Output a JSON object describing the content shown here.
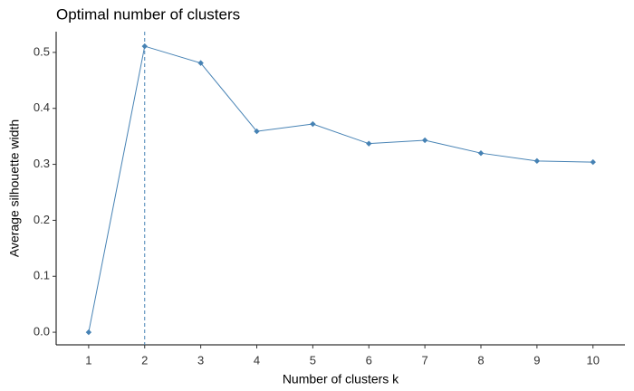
{
  "chart_data": {
    "type": "line",
    "title": "Optimal number of clusters",
    "xlabel": "Number of clusters k",
    "ylabel": "Average silhouette width",
    "x": [
      1,
      2,
      3,
      4,
      5,
      6,
      7,
      8,
      9,
      10
    ],
    "series": [
      {
        "color": "#4682b4",
        "values": [
          0,
          0.511,
          0.481,
          0.359,
          0.372,
          0.337,
          0.343,
          0.32,
          0.306,
          0.304
        ]
      }
    ],
    "optimal_k": 2,
    "xlim": [
      0.42,
      10.57
    ],
    "xticks": [
      1,
      2,
      3,
      4,
      5,
      6,
      7,
      8,
      9,
      10
    ],
    "ylim": [
      -0.0225,
      0.537
    ],
    "yticks": [
      {
        "value": 0,
        "label": "0.0"
      },
      0.1,
      0.2,
      0.3,
      0.4,
      0.5
    ],
    "grid": false
  }
}
